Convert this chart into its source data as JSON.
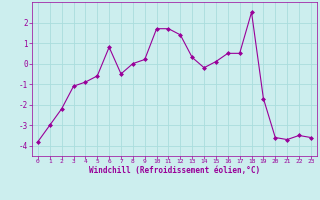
{
  "x": [
    0,
    1,
    2,
    3,
    4,
    5,
    6,
    7,
    8,
    9,
    10,
    11,
    12,
    13,
    14,
    15,
    16,
    17,
    18,
    19,
    20,
    21,
    22,
    23
  ],
  "y": [
    -3.8,
    -3.0,
    -2.2,
    -1.1,
    -0.9,
    -0.6,
    0.8,
    -0.5,
    0.0,
    0.2,
    1.7,
    1.7,
    1.4,
    0.3,
    -0.2,
    0.1,
    0.5,
    0.5,
    2.5,
    -1.7,
    -3.6,
    -3.7,
    -3.5,
    -3.6
  ],
  "line_color": "#990099",
  "marker_color": "#990099",
  "bg_color": "#cceeee",
  "grid_color": "#aadddd",
  "xlabel": "Windchill (Refroidissement éolien,°C)",
  "xlabel_color": "#990099",
  "tick_color": "#990099",
  "axis_color": "#990099",
  "xlim": [
    -0.5,
    23.5
  ],
  "ylim": [
    -4.5,
    3.0
  ],
  "yticks": [
    -4,
    -3,
    -2,
    -1,
    0,
    1,
    2
  ],
  "xticks": [
    0,
    1,
    2,
    3,
    4,
    5,
    6,
    7,
    8,
    9,
    10,
    11,
    12,
    13,
    14,
    15,
    16,
    17,
    18,
    19,
    20,
    21,
    22,
    23
  ],
  "figsize": [
    3.2,
    2.0
  ],
  "dpi": 100
}
